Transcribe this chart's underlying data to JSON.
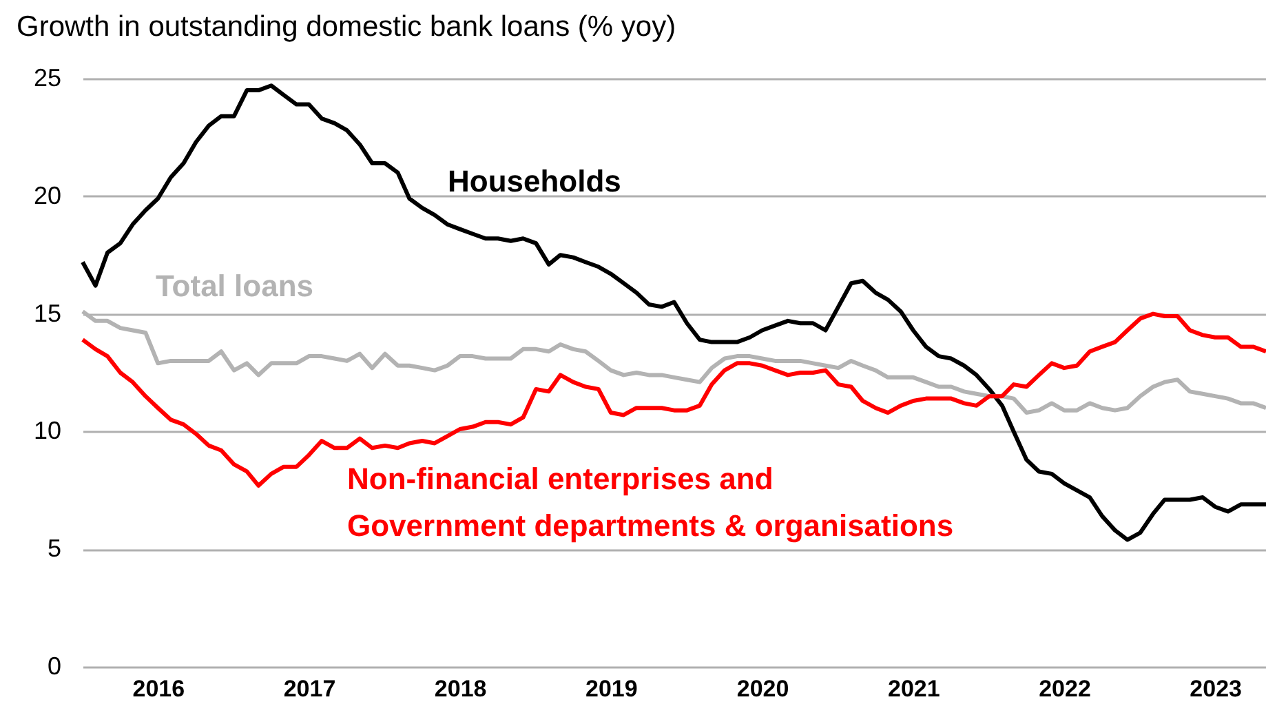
{
  "chart_data": {
    "type": "line",
    "title": "Growth in outstanding domestic bank loans (% yoy)",
    "x": [
      "2016-01",
      "2016-02",
      "2016-03",
      "2016-04",
      "2016-05",
      "2016-06",
      "2016-07",
      "2016-08",
      "2016-09",
      "2016-10",
      "2016-11",
      "2016-12",
      "2017-01",
      "2017-02",
      "2017-03",
      "2017-04",
      "2017-05",
      "2017-06",
      "2017-07",
      "2017-08",
      "2017-09",
      "2017-10",
      "2017-11",
      "2017-12",
      "2018-01",
      "2018-02",
      "2018-03",
      "2018-04",
      "2018-05",
      "2018-06",
      "2018-07",
      "2018-08",
      "2018-09",
      "2018-10",
      "2018-11",
      "2018-12",
      "2019-01",
      "2019-02",
      "2019-03",
      "2019-04",
      "2019-05",
      "2019-06",
      "2019-07",
      "2019-08",
      "2019-09",
      "2019-10",
      "2019-11",
      "2019-12",
      "2020-01",
      "2020-02",
      "2020-03",
      "2020-04",
      "2020-05",
      "2020-06",
      "2020-07",
      "2020-08",
      "2020-09",
      "2020-10",
      "2020-11",
      "2020-12",
      "2021-01",
      "2021-02",
      "2021-03",
      "2021-04",
      "2021-05",
      "2021-06",
      "2021-07",
      "2021-08",
      "2021-09",
      "2021-10",
      "2021-11",
      "2021-12",
      "2022-01",
      "2022-02",
      "2022-03",
      "2022-04",
      "2022-05",
      "2022-06",
      "2022-07",
      "2022-08",
      "2022-09",
      "2022-10",
      "2022-11",
      "2022-12",
      "2023-01",
      "2023-02",
      "2023-03",
      "2023-04",
      "2023-05",
      "2023-06",
      "2023-07",
      "2023-08",
      "2023-09",
      "2023-10",
      "2023-11"
    ],
    "series": [
      {
        "name": "Households",
        "color": "#000000",
        "values": [
          17.2,
          16.2,
          17.6,
          18.0,
          18.8,
          19.4,
          19.9,
          20.8,
          21.4,
          22.3,
          23.0,
          23.4,
          23.4,
          24.5,
          24.5,
          24.7,
          24.3,
          23.9,
          23.9,
          23.3,
          23.1,
          22.8,
          22.2,
          21.4,
          21.4,
          21.0,
          19.9,
          19.5,
          19.2,
          18.8,
          18.6,
          18.4,
          18.2,
          18.2,
          18.1,
          18.2,
          18.0,
          17.1,
          17.5,
          17.4,
          17.2,
          17.0,
          16.7,
          16.3,
          15.9,
          15.4,
          15.3,
          15.5,
          14.6,
          13.9,
          13.8,
          13.8,
          13.8,
          14.0,
          14.3,
          14.5,
          14.7,
          14.6,
          14.6,
          14.3,
          15.3,
          16.3,
          16.4,
          15.9,
          15.6,
          15.1,
          14.3,
          13.6,
          13.2,
          13.1,
          12.8,
          12.4,
          11.8,
          11.1,
          10.0,
          8.8,
          8.3,
          8.2,
          7.8,
          7.5,
          7.2,
          6.4,
          5.8,
          5.4,
          5.7,
          6.5,
          7.1,
          7.1,
          7.1,
          7.2,
          6.8,
          6.6,
          6.9,
          6.9,
          6.9
        ]
      },
      {
        "name": "Total loans",
        "color": "#b3b3b3",
        "values": [
          15.1,
          14.7,
          14.7,
          14.4,
          14.3,
          14.2,
          12.9,
          13.0,
          13.0,
          13.0,
          13.0,
          13.4,
          12.6,
          12.9,
          12.4,
          12.9,
          12.9,
          12.9,
          13.2,
          13.2,
          13.1,
          13.0,
          13.3,
          12.7,
          13.3,
          12.8,
          12.8,
          12.7,
          12.6,
          12.8,
          13.2,
          13.2,
          13.1,
          13.1,
          13.1,
          13.5,
          13.5,
          13.4,
          13.7,
          13.5,
          13.4,
          13.0,
          12.6,
          12.4,
          12.5,
          12.4,
          12.4,
          12.3,
          12.2,
          12.1,
          12.7,
          13.1,
          13.2,
          13.2,
          13.1,
          13.0,
          13.0,
          13.0,
          12.9,
          12.8,
          12.7,
          13.0,
          12.8,
          12.6,
          12.3,
          12.3,
          12.3,
          12.1,
          11.9,
          11.9,
          11.7,
          11.6,
          11.5,
          11.5,
          11.4,
          10.8,
          10.9,
          11.2,
          10.9,
          10.9,
          11.2,
          11.0,
          10.9,
          11.0,
          11.5,
          11.9,
          12.1,
          12.2,
          11.7,
          11.6,
          11.5,
          11.4,
          11.2,
          11.2,
          11.0
        ]
      },
      {
        "name": "Non-financial enterprises and\nGovernment departments & organisations",
        "color": "#ff0000",
        "values": [
          13.9,
          13.5,
          13.2,
          12.5,
          12.1,
          11.5,
          11.0,
          10.5,
          10.3,
          9.9,
          9.4,
          9.2,
          8.6,
          8.3,
          7.7,
          8.2,
          8.5,
          8.5,
          9.0,
          9.6,
          9.3,
          9.3,
          9.7,
          9.3,
          9.4,
          9.3,
          9.5,
          9.6,
          9.5,
          9.8,
          10.1,
          10.2,
          10.4,
          10.4,
          10.3,
          10.6,
          11.8,
          11.7,
          12.4,
          12.1,
          11.9,
          11.8,
          10.8,
          10.7,
          11.0,
          11.0,
          11.0,
          10.9,
          10.9,
          11.1,
          12.0,
          12.6,
          12.9,
          12.9,
          12.8,
          12.6,
          12.4,
          12.5,
          12.5,
          12.6,
          12.0,
          11.9,
          11.3,
          11.0,
          10.8,
          11.1,
          11.3,
          11.4,
          11.4,
          11.4,
          11.2,
          11.1,
          11.5,
          11.5,
          12.0,
          11.9,
          12.4,
          12.9,
          12.7,
          12.8,
          13.4,
          13.6,
          13.8,
          14.3,
          14.8,
          15.0,
          14.9,
          14.9,
          14.3,
          14.1,
          14.0,
          14.0,
          13.6,
          13.6,
          13.4
        ]
      }
    ],
    "xlim": [
      "2016-01",
      "2023-11"
    ],
    "xticks": [
      {
        "value": "2016-07",
        "label": "2016"
      },
      {
        "value": "2017-07",
        "label": "2017"
      },
      {
        "value": "2018-07",
        "label": "2018"
      },
      {
        "value": "2019-07",
        "label": "2019"
      },
      {
        "value": "2020-07",
        "label": "2020"
      },
      {
        "value": "2021-07",
        "label": "2021"
      },
      {
        "value": "2022-07",
        "label": "2022"
      },
      {
        "value": "2023-07",
        "label": "2023"
      }
    ],
    "ylim": [
      0,
      25
    ],
    "yticks": [
      0,
      5,
      10,
      15,
      20,
      25
    ],
    "grid": "y"
  }
}
